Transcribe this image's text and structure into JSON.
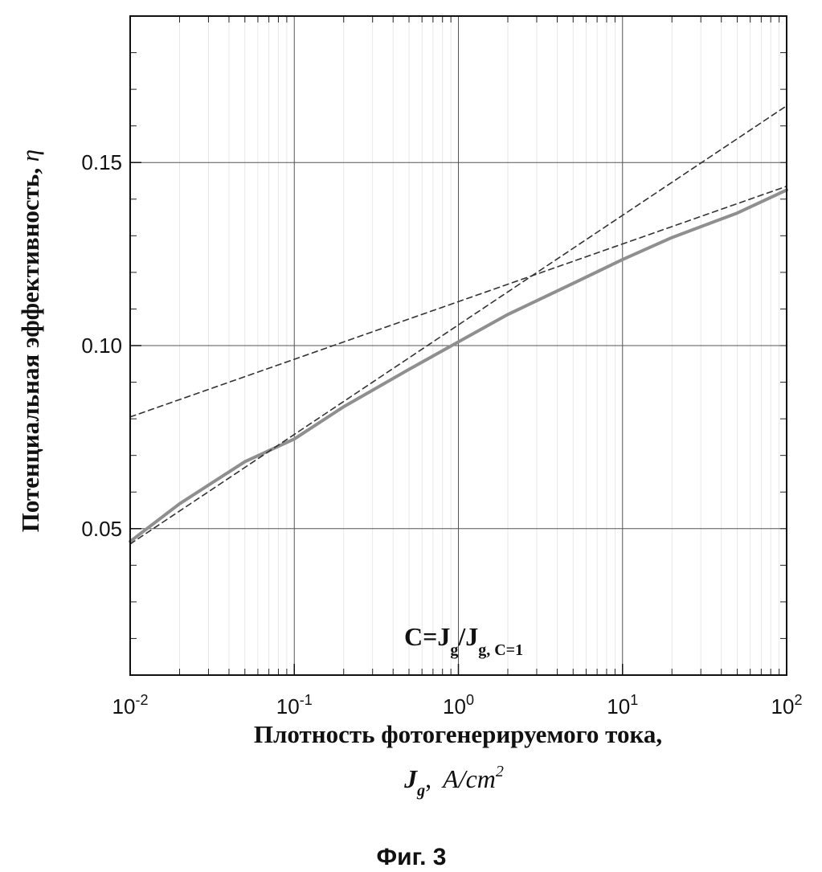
{
  "chart_data": {
    "type": "line",
    "xscale": "log",
    "xlim": [
      0.01,
      100
    ],
    "ylim": [
      0.01,
      0.19
    ],
    "x_ticks": [
      {
        "value": 0.01,
        "base": "10",
        "exp": "-2"
      },
      {
        "value": 0.1,
        "base": "10",
        "exp": "-1"
      },
      {
        "value": 1,
        "base": "10",
        "exp": "0"
      },
      {
        "value": 10,
        "base": "10",
        "exp": "1"
      },
      {
        "value": 100,
        "base": "10",
        "exp": "2"
      }
    ],
    "y_ticks": [
      {
        "value": 0.05,
        "label": "0.05"
      },
      {
        "value": 0.1,
        "label": "0.10"
      },
      {
        "value": 0.15,
        "label": "0.15"
      }
    ],
    "grid": true,
    "ylabel": {
      "text": "Потенциальная эффективность, ",
      "symbol": "η"
    },
    "xlabel": {
      "line1": "Плотность фотогенерируемого тока,",
      "symbol": "J",
      "symbol_sub": "g",
      "sep": ",",
      "unit": "A/cm",
      "unit_sup": "2"
    },
    "annotation": {
      "prefix": "C=J",
      "sub1": "g",
      "mid": "/J",
      "sub2": "g, C=1"
    },
    "figure_caption": "Фиг. 3",
    "series": [
      {
        "style": "solid",
        "color": "#8f8f8f",
        "x": [
          0.01,
          0.02,
          0.05,
          0.1,
          0.2,
          0.5,
          1,
          2,
          5,
          10,
          20,
          50,
          100
        ],
        "y": [
          0.0465,
          0.0568,
          0.0683,
          0.0745,
          0.0833,
          0.0935,
          0.101,
          0.1085,
          0.117,
          0.1235,
          0.1295,
          0.1362,
          0.1425
        ]
      },
      {
        "style": "dashed",
        "color": "#333333",
        "x": [
          0.01,
          100
        ],
        "y": [
          0.0458,
          0.1655
        ]
      },
      {
        "style": "dashed",
        "color": "#333333",
        "x": [
          0.01,
          100
        ],
        "y": [
          0.0805,
          0.1435
        ]
      }
    ]
  }
}
